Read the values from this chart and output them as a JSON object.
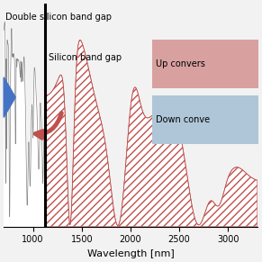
{
  "xlabel": "Wavelength [nm]",
  "xlim": [
    700,
    3300
  ],
  "ylim": [
    0,
    1.0
  ],
  "silicon_bandgap_nm": 1127,
  "bg_color": "#f2f2f2",
  "spectrum_color": "#c0504d",
  "spectrum_hatch": "////",
  "uv_vis_color": "#888888",
  "label_double": "Double silicon band gap",
  "label_single": "Silicon band gap",
  "label_up": "Up convers",
  "label_down": "Down conve",
  "up_box_color": "#d9a0a0",
  "down_box_color": "#aec6d8",
  "arrow_color": "#c0504d",
  "blue_arrow_color": "#4472c4",
  "xticks": [
    1000,
    1500,
    2000,
    2500,
    3000
  ],
  "fontsize_labels": 8,
  "fontsize_annot": 7,
  "figsize": [
    2.91,
    2.91
  ],
  "dpi": 100
}
